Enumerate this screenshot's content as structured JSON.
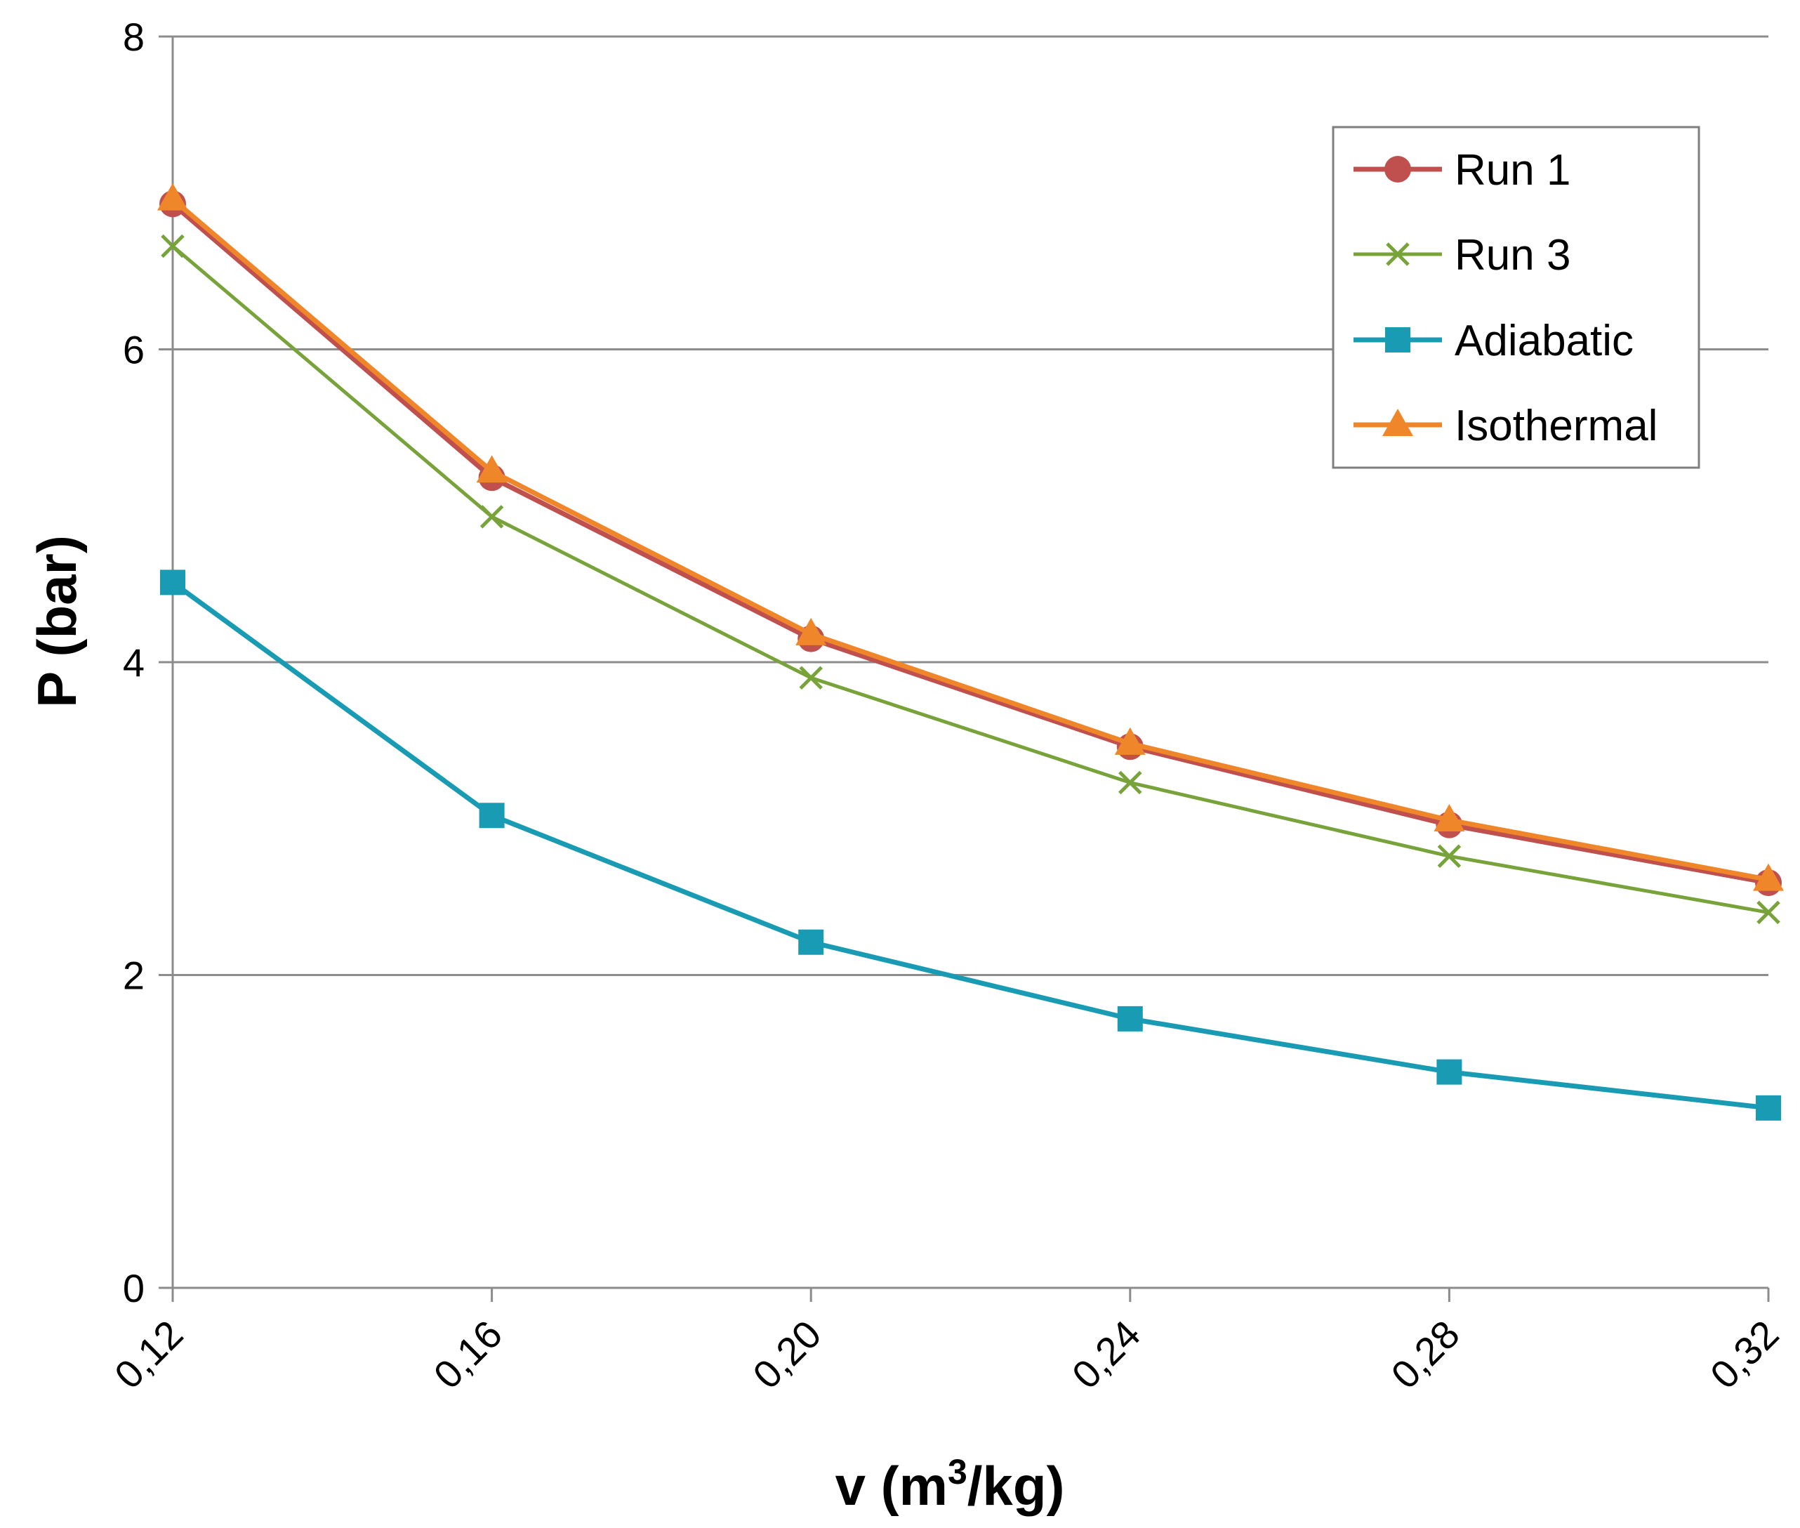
{
  "chart_data": {
    "type": "line",
    "title": "",
    "xlabel": {
      "prefix": "v (m",
      "superscript": "3",
      "suffix": "/kg)"
    },
    "ylabel": "P (bar)",
    "x": [
      0.12,
      0.16,
      0.2,
      0.24,
      0.28,
      0.32
    ],
    "x_tick_labels": [
      "0,12",
      "0,16",
      "0,20",
      "0,24",
      "0,28",
      "0,32"
    ],
    "y_ticks": [
      0,
      2,
      4,
      6,
      8
    ],
    "y_tick_labels": [
      "0",
      "2",
      "4",
      "6",
      "8"
    ],
    "xlim": [
      0.12,
      0.32
    ],
    "ylim": [
      0,
      8
    ],
    "grid": "horizontal",
    "legend_position": "top-right",
    "series": [
      {
        "name": "Run 1",
        "color": "#C0504D",
        "marker": "circle",
        "values": [
          6.93,
          5.18,
          4.15,
          3.46,
          2.96,
          2.59
        ]
      },
      {
        "name": "Run 3",
        "color": "#77A33A",
        "marker": "x",
        "values": [
          6.66,
          4.93,
          3.9,
          3.23,
          2.76,
          2.4
        ]
      },
      {
        "name": "Adiabatic",
        "color": "#1A9BB4",
        "marker": "square",
        "values": [
          4.51,
          3.02,
          2.21,
          1.72,
          1.38,
          1.15
        ]
      },
      {
        "name": "Isothermal",
        "color": "#F0862A",
        "marker": "triangle",
        "values": [
          6.96,
          5.22,
          4.18,
          3.48,
          2.99,
          2.61
        ]
      }
    ]
  }
}
